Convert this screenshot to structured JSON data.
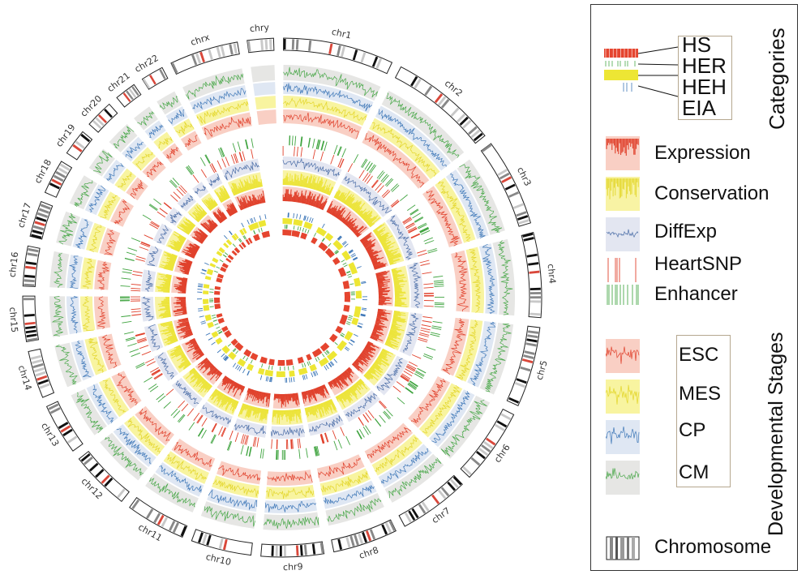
{
  "chart_data": {
    "type": "circos",
    "title": "",
    "chromosomes": [
      "chr1",
      "chr2",
      "chr3",
      "chr4",
      "chr5",
      "chr6",
      "chr7",
      "chr8",
      "chr9",
      "chr10",
      "chr11",
      "chr12",
      "chr13",
      "chr14",
      "chr15",
      "chr16",
      "chr17",
      "chr18",
      "chr19",
      "chr20",
      "chr21",
      "chr22",
      "chrx",
      "chry"
    ],
    "chromosome_relative_sizes": [
      249,
      243,
      198,
      191,
      181,
      171,
      159,
      146,
      141,
      136,
      135,
      134,
      115,
      107,
      102,
      90,
      81,
      78,
      59,
      63,
      48,
      51,
      155,
      59
    ],
    "track_order_outer_to_inner": [
      "Chromosome",
      "CM",
      "CP",
      "MES",
      "ESC",
      "Enhancer",
      "HeartSNP",
      "DiffExp",
      "Conservation",
      "Expression",
      "EIA",
      "HEH",
      "HER",
      "HS"
    ],
    "tracks": {
      "Chromosome": {
        "type": "ideogram"
      },
      "CM": {
        "type": "line",
        "color": "#4aa84a",
        "bg": "#e6e6e4"
      },
      "CP": {
        "type": "line",
        "color": "#3f78b8",
        "bg": "#dfe7f3"
      },
      "MES": {
        "type": "line",
        "color": "#e3d62a",
        "bg": "#f8f4a0"
      },
      "ESC": {
        "type": "line",
        "color": "#e0412c",
        "bg": "#f9cfc4"
      },
      "Enhancer": {
        "type": "tick",
        "color": "#3ea33e"
      },
      "HeartSNP": {
        "type": "tick",
        "color": "#e0412c"
      },
      "DiffExp": {
        "type": "line",
        "color": "#4d6fa8",
        "bg": "#e3e6f1"
      },
      "Conservation": {
        "type": "histogram",
        "color": "#ece43a",
        "bg": "#f8f3a4"
      },
      "Expression": {
        "type": "histogram",
        "color": "#e0412c",
        "bg": "#f9cfc4"
      },
      "EIA": {
        "type": "tick",
        "color": "#3f78b8"
      },
      "HEH": {
        "type": "band",
        "color": "#ede634"
      },
      "HER": {
        "type": "tick",
        "color": "#4aa84a"
      },
      "HS": {
        "type": "band",
        "color": "#e5452f"
      }
    },
    "empty_tracks_for": [
      "chry"
    ],
    "inner_tracks_absent_for": [
      "chry"
    ]
  },
  "legend": {
    "categories_title": "Categories",
    "categories": [
      "HS",
      "HER",
      "HEH",
      "EIA"
    ],
    "data_tracks": [
      {
        "name": "expression",
        "label": "Expression"
      },
      {
        "name": "conservation",
        "label": "Conservation"
      },
      {
        "name": "diffexp",
        "label": "DiffExp"
      },
      {
        "name": "heartsnp",
        "label": "HeartSNP"
      },
      {
        "name": "enhancer",
        "label": "Enhancer"
      }
    ],
    "stages_title": "Developmental Stages",
    "stages": [
      "ESC",
      "MES",
      "CP",
      "CM"
    ],
    "chromosome_label": "Chromosome"
  },
  "colors": {
    "red": "#e0412c",
    "red_bg": "#f9cfc4",
    "yellow": "#ece43a",
    "yellow_bg": "#f8f3a4",
    "blue": "#3f78b8",
    "blue_bg": "#dfe7f3",
    "green": "#4aa84a",
    "green_bg": "#e6e6e4",
    "box_border": "#b5a78f"
  }
}
